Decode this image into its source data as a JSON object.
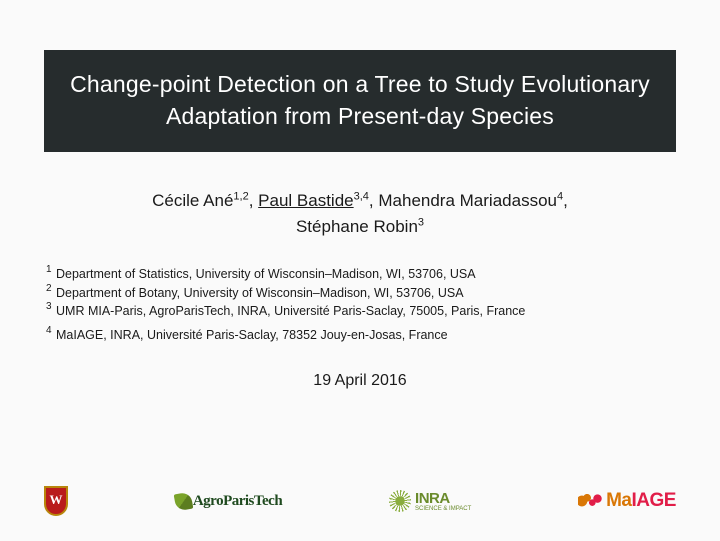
{
  "title": "Change-point Detection on a Tree to Study Evolutionary Adaptation from Present-day Species",
  "authors": [
    {
      "name": "Cécile Ané",
      "affil": "1,2",
      "presenting": false
    },
    {
      "name": "Paul Bastide",
      "affil": "3,4",
      "presenting": true
    },
    {
      "name": "Mahendra Mariadassou",
      "affil": "4",
      "presenting": false
    },
    {
      "name": "Stéphane Robin",
      "affil": "3",
      "presenting": false
    }
  ],
  "affiliations": [
    {
      "num": "1",
      "text": "Department of Statistics, University of Wisconsin–Madison, WI, 53706, USA"
    },
    {
      "num": "2",
      "text": "Department of Botany, University of Wisconsin–Madison, WI, 53706, USA"
    },
    {
      "num": "3",
      "text": "UMR MIA-Paris, AgroParisTech, INRA, Université Paris-Saclay, 75005, Paris, France"
    },
    {
      "num": "4",
      "text": "MaIAGE, INRA, Université Paris-Saclay, 78352 Jouy-en-Josas, France"
    }
  ],
  "affil_gap_after": "3",
  "date": "19 April 2016",
  "logos": {
    "wisconsin": "W",
    "agroparistech": "AgroParisTech",
    "inra": "INRA",
    "inra_sub": "SCIENCE & IMPACT",
    "maiage_a": "Ma",
    "maiage_b": "IAGE"
  },
  "colors": {
    "title_bg": "#262c2d",
    "page_bg": "#fafafa",
    "wisconsin_red": "#b91c1c",
    "apt_green": "#1f4a1f",
    "inra_green": "#6a8b2c",
    "maiage_orange": "#d97706",
    "maiage_pink": "#e11d48"
  }
}
